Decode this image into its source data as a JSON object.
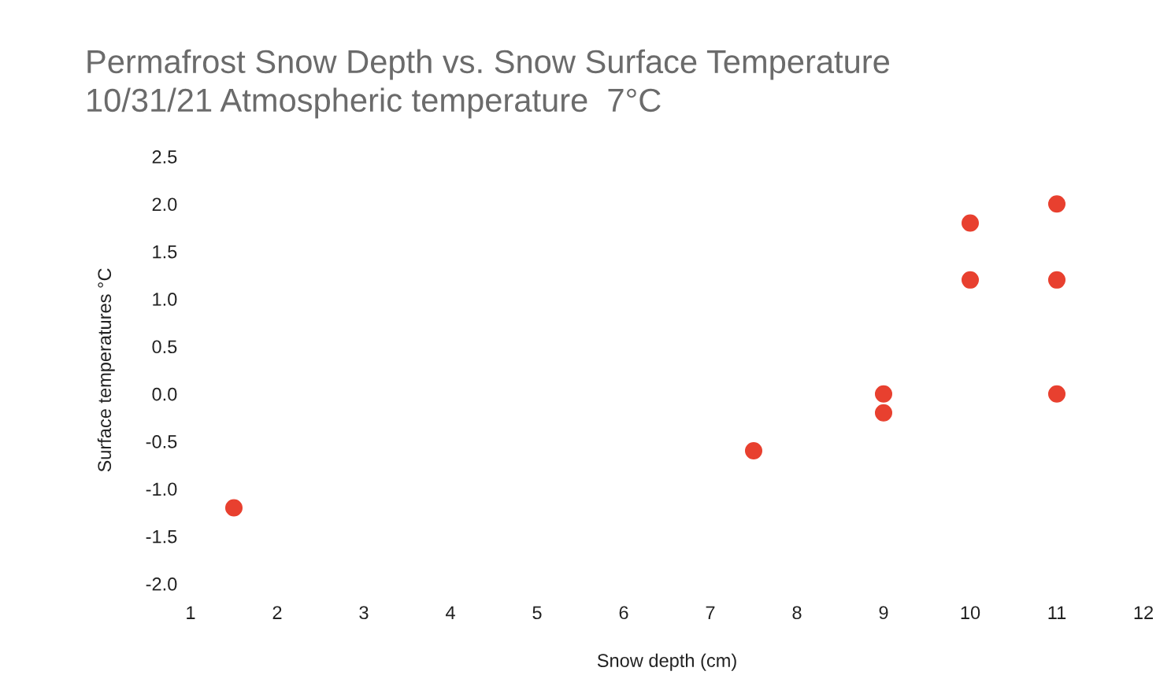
{
  "chart_data": {
    "type": "scatter",
    "title": "Permafrost Snow Depth vs. Snow Surface Temperature",
    "subtitle": "10/31/21 Atmospheric temperature  7°C",
    "xlabel": "Snow depth (cm)",
    "ylabel": "Surface temperatures °C",
    "x": [
      1.5,
      7.5,
      9,
      9,
      10,
      10,
      11,
      11,
      11
    ],
    "series": [
      {
        "color": "#e8402f",
        "values": [
          -1.2,
          -0.6,
          0.0,
          -0.2,
          1.8,
          1.2,
          2.0,
          1.2,
          0.0
        ]
      }
    ],
    "xlim": [
      1,
      12
    ],
    "ylim": [
      -2.0,
      2.5
    ],
    "xticks": [
      1,
      2,
      3,
      4,
      5,
      6,
      7,
      8,
      9,
      10,
      11,
      12
    ],
    "yticks": [
      {
        "value": -2.0,
        "label": "-2.0"
      },
      {
        "value": -1.5,
        "label": "-1.5"
      },
      {
        "value": -1.0,
        "label": "-1.0"
      },
      {
        "value": -0.5,
        "label": "-0.5"
      },
      {
        "value": 0.0,
        "label": "0.0"
      },
      {
        "value": 0.5,
        "label": "0.5"
      },
      {
        "value": 1.0,
        "label": "1.0"
      },
      {
        "value": 1.5,
        "label": "1.5"
      },
      {
        "value": 2.0,
        "label": "2.0"
      },
      {
        "value": 2.5,
        "label": "2.5"
      }
    ],
    "grid": false,
    "legend": false,
    "marker": "circle"
  }
}
